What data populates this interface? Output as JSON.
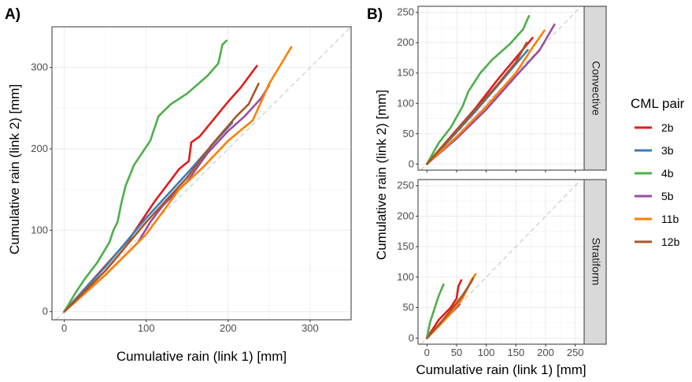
{
  "panel_labels": [
    "A)",
    "B)"
  ],
  "facet_labels": [
    "Convective",
    "Stratiform"
  ],
  "legend": {
    "title": "CML pair",
    "items": [
      {
        "label": "2b",
        "color": "#e41a1c"
      },
      {
        "label": "3b",
        "color": "#377eb8"
      },
      {
        "label": "4b",
        "color": "#4daf4a"
      },
      {
        "label": "5b",
        "color": "#984ea3"
      },
      {
        "label": "11b",
        "color": "#ff7f00"
      },
      {
        "label": "12b",
        "color": "#a65628"
      }
    ]
  },
  "chart_data": [
    {
      "type": "line",
      "panel": "A)",
      "xlabel": "Cumulative rain (link 1) [mm]",
      "ylabel": "Cumulative rain (link 2) [mm]",
      "xlim": [
        -15,
        350
      ],
      "ylim": [
        -10,
        350
      ],
      "xticks": [
        0,
        100,
        200,
        300
      ],
      "yticks": [
        0,
        100,
        200,
        300
      ],
      "grid": true,
      "reference_line": "1:1 dashed",
      "series": [
        {
          "name": "2b",
          "color": "#e41a1c",
          "points": [
            [
              0,
              0
            ],
            [
              40,
              45
            ],
            [
              80,
              90
            ],
            [
              110,
              135
            ],
            [
              140,
              175
            ],
            [
              152,
              185
            ],
            [
              155,
              208
            ],
            [
              165,
              215
            ],
            [
              200,
              258
            ],
            [
              215,
              275
            ],
            [
              235,
              302
            ]
          ]
        },
        {
          "name": "3b",
          "color": "#377eb8",
          "points": [
            [
              0,
              0
            ],
            [
              50,
              55
            ],
            [
              100,
              115
            ],
            [
              150,
              170
            ],
            [
              185,
              210
            ],
            [
              205,
              232
            ]
          ]
        },
        {
          "name": "4b",
          "color": "#4daf4a",
          "points": [
            [
              0,
              0
            ],
            [
              15,
              25
            ],
            [
              25,
              40
            ],
            [
              40,
              60
            ],
            [
              55,
              85
            ],
            [
              60,
              100
            ],
            [
              65,
              110
            ],
            [
              70,
              135
            ],
            [
              75,
              155
            ],
            [
              85,
              180
            ],
            [
              95,
              195
            ],
            [
              105,
              210
            ],
            [
              115,
              240
            ],
            [
              130,
              255
            ],
            [
              150,
              268
            ],
            [
              175,
              290
            ],
            [
              188,
              305
            ],
            [
              193,
              328
            ],
            [
              198,
              333
            ]
          ]
        },
        {
          "name": "5b",
          "color": "#984ea3",
          "points": [
            [
              0,
              0
            ],
            [
              50,
              45
            ],
            [
              90,
              85
            ],
            [
              105,
              110
            ],
            [
              120,
              130
            ],
            [
              150,
              160
            ],
            [
              175,
              195
            ],
            [
              200,
              222
            ],
            [
              220,
              240
            ],
            [
              240,
              262
            ],
            [
              250,
              278
            ]
          ]
        },
        {
          "name": "11b",
          "color": "#ff7f00",
          "points": [
            [
              0,
              0
            ],
            [
              50,
              45
            ],
            [
              100,
              95
            ],
            [
              140,
              150
            ],
            [
              170,
              178
            ],
            [
              200,
              210
            ],
            [
              230,
              235
            ],
            [
              250,
              280
            ],
            [
              265,
              305
            ],
            [
              277,
              325
            ]
          ]
        },
        {
          "name": "12b",
          "color": "#a65628",
          "points": [
            [
              0,
              0
            ],
            [
              50,
              50
            ],
            [
              100,
              110
            ],
            [
              150,
              165
            ],
            [
              180,
              205
            ],
            [
              210,
              240
            ],
            [
              225,
              255
            ],
            [
              237,
              280
            ]
          ]
        }
      ]
    },
    {
      "type": "line",
      "panel": "B) Convective",
      "ylabel": "Cumulative rain (link 2) [mm]",
      "xlim": [
        -15,
        265
      ],
      "ylim": [
        -10,
        260
      ],
      "xticks": [
        0,
        50,
        100,
        150,
        200,
        250
      ],
      "yticks": [
        0,
        50,
        100,
        150,
        200,
        250
      ],
      "grid": true,
      "reference_line": "1:1 dashed",
      "series": [
        {
          "name": "2b",
          "color": "#e41a1c",
          "points": [
            [
              0,
              0
            ],
            [
              40,
              45
            ],
            [
              80,
              90
            ],
            [
              120,
              140
            ],
            [
              150,
              175
            ],
            [
              178,
              208
            ]
          ]
        },
        {
          "name": "3b",
          "color": "#377eb8",
          "points": [
            [
              0,
              0
            ],
            [
              40,
              42
            ],
            [
              80,
              85
            ],
            [
              120,
              130
            ],
            [
              150,
              165
            ],
            [
              170,
              188
            ]
          ]
        },
        {
          "name": "4b",
          "color": "#4daf4a",
          "points": [
            [
              0,
              0
            ],
            [
              20,
              35
            ],
            [
              40,
              60
            ],
            [
              60,
              95
            ],
            [
              70,
              120
            ],
            [
              90,
              150
            ],
            [
              110,
              172
            ],
            [
              140,
              198
            ],
            [
              162,
              222
            ],
            [
              172,
              244
            ]
          ]
        },
        {
          "name": "5b",
          "color": "#984ea3",
          "points": [
            [
              0,
              0
            ],
            [
              50,
              42
            ],
            [
              100,
              90
            ],
            [
              150,
              145
            ],
            [
              190,
              188
            ],
            [
              215,
              230
            ]
          ]
        },
        {
          "name": "11b",
          "color": "#ff7f00",
          "points": [
            [
              0,
              0
            ],
            [
              50,
              45
            ],
            [
              100,
              95
            ],
            [
              150,
              150
            ],
            [
              180,
              195
            ],
            [
              198,
              220
            ]
          ]
        },
        {
          "name": "12b",
          "color": "#a65628",
          "points": [
            [
              0,
              0
            ],
            [
              40,
              44
            ],
            [
              80,
              88
            ],
            [
              120,
              132
            ],
            [
              150,
              168
            ],
            [
              168,
              200
            ]
          ]
        }
      ]
    },
    {
      "type": "line",
      "panel": "B) Stratiform",
      "xlabel": "Cumulative rain (link 1) [mm]",
      "ylabel": "Cumulative rain (link 2) [mm]",
      "xlim": [
        -15,
        265
      ],
      "ylim": [
        -10,
        260
      ],
      "xticks": [
        0,
        50,
        100,
        150,
        200,
        250
      ],
      "yticks": [
        0,
        50,
        100,
        150,
        200,
        250
      ],
      "grid": true,
      "reference_line": "1:1 dashed",
      "series": [
        {
          "name": "2b",
          "color": "#e41a1c",
          "points": [
            [
              0,
              0
            ],
            [
              20,
              30
            ],
            [
              40,
              50
            ],
            [
              50,
              65
            ],
            [
              53,
              85
            ],
            [
              58,
              95
            ]
          ]
        },
        {
          "name": "3b",
          "color": "#377eb8",
          "points": [
            [
              0,
              0
            ],
            [
              15,
              15
            ],
            [
              25,
              25
            ]
          ]
        },
        {
          "name": "4b",
          "color": "#4daf4a",
          "points": [
            [
              0,
              0
            ],
            [
              5,
              25
            ],
            [
              10,
              40
            ],
            [
              15,
              55
            ],
            [
              20,
              70
            ],
            [
              28,
              88
            ]
          ]
        },
        {
          "name": "5b",
          "color": "#984ea3",
          "points": [
            [
              0,
              0
            ],
            [
              25,
              25
            ],
            [
              45,
              45
            ],
            [
              55,
              55
            ]
          ]
        },
        {
          "name": "11b",
          "color": "#ff7f00",
          "points": [
            [
              0,
              0
            ],
            [
              20,
              20
            ],
            [
              40,
              40
            ],
            [
              60,
              65
            ],
            [
              75,
              95
            ],
            [
              82,
              105
            ]
          ]
        },
        {
          "name": "12b",
          "color": "#a65628",
          "points": [
            [
              0,
              0
            ],
            [
              20,
              22
            ],
            [
              40,
              45
            ],
            [
              60,
              70
            ],
            [
              72,
              88
            ],
            [
              78,
              98
            ]
          ]
        }
      ]
    }
  ]
}
